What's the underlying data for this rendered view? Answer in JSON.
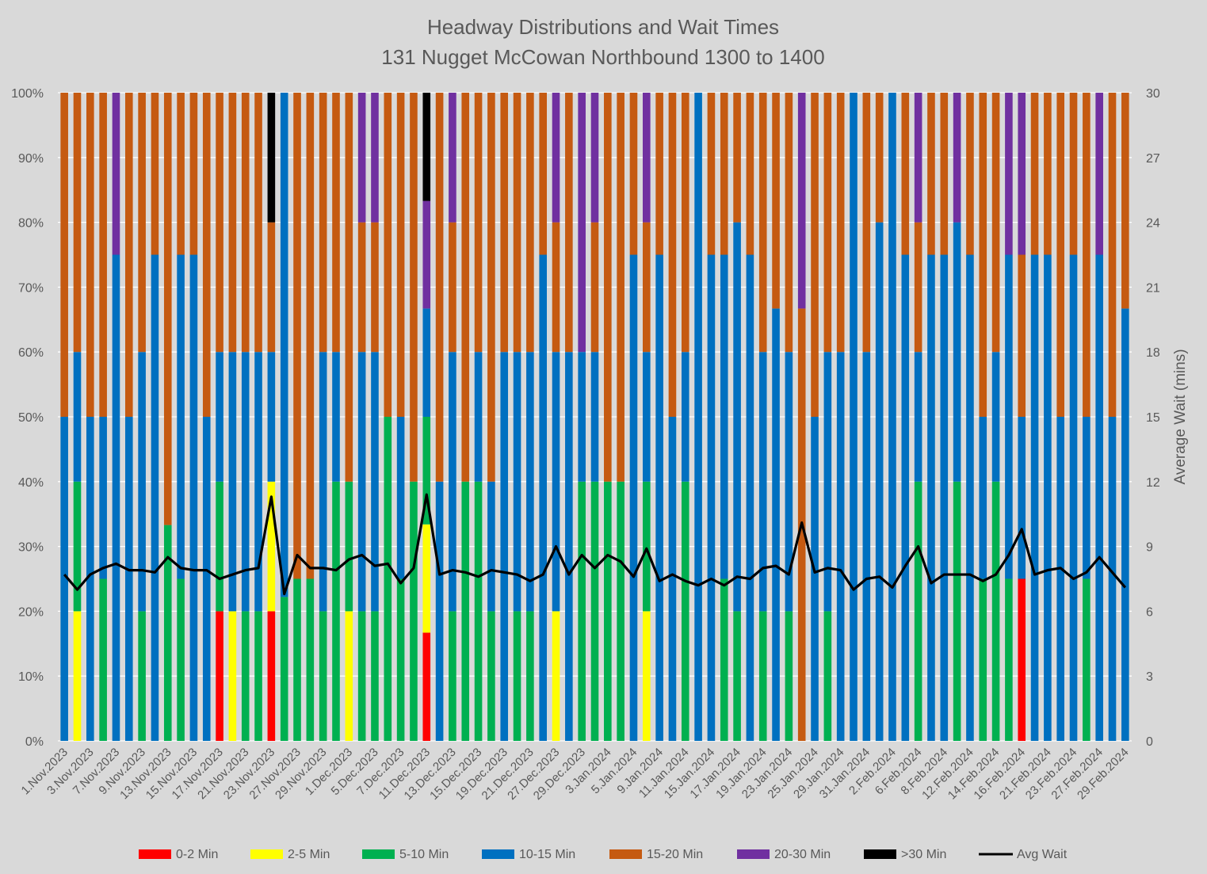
{
  "chart_data": {
    "type": "bar",
    "stacked": true,
    "title": "Headway Distributions and Wait Times",
    "subtitle": "131 Nugget  McCowan Northbound 1300 to 1400",
    "xlabel": "",
    "ylabel": "",
    "y2label": "Average Wait (mins)",
    "ylim": [
      0,
      100
    ],
    "y2lim": [
      0,
      30
    ],
    "yticks": [
      "0%",
      "10%",
      "20%",
      "30%",
      "40%",
      "50%",
      "60%",
      "70%",
      "80%",
      "90%",
      "100%"
    ],
    "y2ticks": [
      "0",
      "3",
      "6",
      "9",
      "12",
      "15",
      "18",
      "21",
      "24",
      "27",
      "30"
    ],
    "grid": true,
    "legend": "bottom",
    "categories": [
      "1.Nov.2023",
      "",
      "3.Nov.2023",
      "",
      "7.Nov.2023",
      "",
      "9.Nov.2023",
      "",
      "13.Nov.2023",
      "",
      "15.Nov.2023",
      "",
      "17.Nov.2023",
      "",
      "21.Nov.2023",
      "",
      "23.Nov.2023",
      "",
      "27.Nov.2023",
      "",
      "29.Nov.2023",
      "",
      "1.Dec.2023",
      "",
      "5.Dec.2023",
      "",
      "7.Dec.2023",
      "",
      "11.Dec.2023",
      "",
      "13.Dec.2023",
      "",
      "15.Dec.2023",
      "",
      "19.Dec.2023",
      "",
      "21.Dec.2023",
      "",
      "27.Dec.2023",
      "",
      "29.Dec.2023",
      "",
      "3.Jan.2024",
      "",
      "5.Jan.2024",
      "",
      "9.Jan.2024",
      "",
      "11.Jan.2024",
      "",
      "15.Jan.2024",
      "",
      "17.Jan.2024",
      "",
      "19.Jan.2024",
      "",
      "23.Jan.2024",
      "",
      "25.Jan.2024",
      "",
      "29.Jan.2024",
      "",
      "31.Jan.2024",
      "",
      "2.Feb.2024",
      "",
      "6.Feb.2024",
      "",
      "8.Feb.2024",
      "",
      "12.Feb.2024",
      "",
      "14.Feb.2024",
      "",
      "16.Feb.2024",
      "",
      "21.Feb.2024",
      "",
      "23.Feb.2024",
      "",
      "27.Feb.2024",
      "",
      "29.Feb.2024"
    ],
    "series": [
      {
        "name": "0-2 Min",
        "color": "#ff0000"
      },
      {
        "name": "2-5 Min",
        "color": "#ffff00"
      },
      {
        "name": "5-10 Min",
        "color": "#00b050"
      },
      {
        "name": "10-15 Min",
        "color": "#0070c0"
      },
      {
        "name": "15-20 Min",
        "color": "#c55a11"
      },
      {
        "name": "20-30 Min",
        "color": "#7030a0"
      },
      {
        "name": ">30 Min",
        "color": "#000000"
      }
    ],
    "stacked_values_percent": [
      [
        0,
        0,
        0,
        50,
        50,
        0,
        0
      ],
      [
        0,
        20,
        20,
        20,
        40,
        0,
        0
      ],
      [
        0,
        0,
        0,
        50,
        50,
        0,
        0
      ],
      [
        0,
        0,
        25,
        25,
        50,
        0,
        0
      ],
      [
        0,
        0,
        0,
        75,
        0,
        25,
        0
      ],
      [
        0,
        0,
        0,
        50,
        50,
        0,
        0
      ],
      [
        0,
        0,
        20,
        40,
        40,
        0,
        0
      ],
      [
        0,
        0,
        0,
        75,
        25,
        0,
        0
      ],
      [
        0,
        0,
        33.3,
        0,
        66.7,
        0,
        0
      ],
      [
        0,
        0,
        25,
        50,
        25,
        0,
        0
      ],
      [
        0,
        0,
        0,
        75,
        25,
        0,
        0
      ],
      [
        0,
        0,
        0,
        50,
        50,
        0,
        0
      ],
      [
        20,
        0,
        20,
        20,
        40,
        0,
        0
      ],
      [
        0,
        20,
        0,
        40,
        40,
        0,
        0
      ],
      [
        0,
        0,
        20,
        40,
        40,
        0,
        0
      ],
      [
        0,
        0,
        20,
        40,
        40,
        0,
        0
      ],
      [
        20,
        20,
        0,
        20,
        20,
        0,
        20
      ],
      [
        0,
        0,
        22.2,
        77.8,
        0,
        0,
        0
      ],
      [
        0,
        0,
        25,
        0,
        75,
        0,
        0
      ],
      [
        0,
        0,
        25,
        0,
        75,
        0,
        0
      ],
      [
        0,
        0,
        20,
        40,
        40,
        0,
        0
      ],
      [
        0,
        0,
        40,
        20,
        40,
        0,
        0
      ],
      [
        0,
        20,
        20,
        0,
        60,
        0,
        0
      ],
      [
        0,
        0,
        20,
        40,
        20,
        20,
        0
      ],
      [
        0,
        0,
        20,
        40,
        20,
        20,
        0
      ],
      [
        0,
        0,
        50,
        0,
        50,
        0,
        0
      ],
      [
        0,
        0,
        25,
        25,
        50,
        0,
        0
      ],
      [
        0,
        0,
        40,
        0,
        60,
        0,
        0
      ],
      [
        16.7,
        16.7,
        16.6,
        16.7,
        0,
        16.6,
        16.7
      ],
      [
        0,
        0,
        0,
        40,
        60,
        0,
        0
      ],
      [
        0,
        0,
        20,
        40,
        20,
        20,
        0
      ],
      [
        0,
        0,
        40,
        0,
        60,
        0,
        0
      ],
      [
        0,
        0,
        40,
        20,
        40,
        0,
        0
      ],
      [
        0,
        0,
        20,
        20,
        60,
        0,
        0
      ],
      [
        0,
        0,
        0,
        60,
        40,
        0,
        0
      ],
      [
        0,
        0,
        20,
        40,
        40,
        0,
        0
      ],
      [
        0,
        0,
        20,
        40,
        40,
        0,
        0
      ],
      [
        0,
        0,
        0,
        75,
        25,
        0,
        0
      ],
      [
        0,
        20,
        0,
        40,
        20,
        20,
        0
      ],
      [
        0,
        0,
        0,
        60,
        40,
        0,
        0
      ],
      [
        0,
        0,
        40,
        20,
        0,
        40,
        0
      ],
      [
        0,
        0,
        40,
        20,
        20,
        20,
        0
      ],
      [
        0,
        0,
        40,
        0,
        60,
        0,
        0
      ],
      [
        0,
        0,
        40,
        0,
        60,
        0,
        0
      ],
      [
        0,
        0,
        0,
        75,
        25,
        0,
        0
      ],
      [
        0,
        20,
        20,
        20,
        20,
        20,
        0
      ],
      [
        0,
        0,
        0,
        75,
        25,
        0,
        0
      ],
      [
        0,
        0,
        0,
        50,
        50,
        0,
        0
      ],
      [
        0,
        0,
        40,
        20,
        40,
        0,
        0
      ],
      [
        0,
        0,
        0,
        100,
        0,
        0,
        0
      ],
      [
        0,
        0,
        0,
        75,
        25,
        0,
        0
      ],
      [
        0,
        0,
        25,
        50,
        25,
        0,
        0
      ],
      [
        0,
        0,
        20,
        60,
        20,
        0,
        0
      ],
      [
        0,
        0,
        0,
        75,
        25,
        0,
        0
      ],
      [
        0,
        0,
        20,
        40,
        40,
        0,
        0
      ],
      [
        0,
        0,
        0,
        66.7,
        33.3,
        0,
        0
      ],
      [
        0,
        0,
        20,
        40,
        40,
        0,
        0
      ],
      [
        0,
        0,
        0,
        0,
        66.7,
        33.3,
        0
      ],
      [
        0,
        0,
        0,
        50,
        50,
        0,
        0
      ],
      [
        0,
        0,
        20,
        40,
        40,
        0,
        0
      ],
      [
        0,
        0,
        0,
        60,
        40,
        0,
        0
      ],
      [
        0,
        0,
        0,
        100,
        0,
        0,
        0
      ],
      [
        0,
        0,
        0,
        60,
        40,
        0,
        0
      ],
      [
        0,
        0,
        0,
        80,
        20,
        0,
        0
      ],
      [
        0,
        0,
        0,
        100,
        0,
        0,
        0
      ],
      [
        0,
        0,
        0,
        75,
        25,
        0,
        0
      ],
      [
        0,
        0,
        40,
        20,
        20,
        20,
        0
      ],
      [
        0,
        0,
        0,
        75,
        25,
        0,
        0
      ],
      [
        0,
        0,
        0,
        75,
        25,
        0,
        0
      ],
      [
        0,
        0,
        40,
        40,
        0,
        20,
        0
      ],
      [
        0,
        0,
        0,
        75,
        25,
        0,
        0
      ],
      [
        0,
        0,
        25,
        25,
        50,
        0,
        0
      ],
      [
        0,
        0,
        40,
        20,
        40,
        0,
        0
      ],
      [
        0,
        0,
        25,
        50,
        0,
        25,
        0
      ],
      [
        25,
        0,
        0,
        25,
        25,
        25,
        0
      ],
      [
        0,
        0,
        0,
        75,
        25,
        0,
        0
      ],
      [
        0,
        0,
        0,
        75,
        25,
        0,
        0
      ],
      [
        0,
        0,
        0,
        50,
        50,
        0,
        0
      ],
      [
        0,
        0,
        0,
        75,
        25,
        0,
        0
      ],
      [
        0,
        0,
        25,
        25,
        50,
        0,
        0
      ],
      [
        0,
        0,
        0,
        75,
        0,
        25,
        0
      ],
      [
        0,
        0,
        0,
        50,
        50,
        0,
        0
      ],
      [
        0,
        0,
        0,
        66.7,
        33.3,
        0,
        0
      ]
    ],
    "line_series": {
      "name": "Avg Wait",
      "color": "#000000",
      "axis": "right",
      "values": [
        7.7,
        7.0,
        7.7,
        8.0,
        8.2,
        7.9,
        7.9,
        7.8,
        8.5,
        8.0,
        7.9,
        7.9,
        7.5,
        7.7,
        7.9,
        8.0,
        11.3,
        6.8,
        8.6,
        8.0,
        8.0,
        7.9,
        8.4,
        8.6,
        8.1,
        8.2,
        7.3,
        8.0,
        11.4,
        7.7,
        7.9,
        7.8,
        7.6,
        7.9,
        7.8,
        7.7,
        7.4,
        7.7,
        9.0,
        7.7,
        8.6,
        8.0,
        8.6,
        8.3,
        7.6,
        8.9,
        7.4,
        7.7,
        7.4,
        7.2,
        7.5,
        7.2,
        7.6,
        7.5,
        8.0,
        8.1,
        7.7,
        10.1,
        7.8,
        8.0,
        7.9,
        7.0,
        7.5,
        7.6,
        7.1,
        8.1,
        9.0,
        7.3,
        7.7,
        7.7,
        7.7,
        7.4,
        7.7,
        8.6,
        9.8,
        7.7,
        7.9,
        8.0,
        7.5,
        7.8,
        8.5,
        7.8,
        7.1
      ]
    },
    "background": "#d9d9d9"
  }
}
